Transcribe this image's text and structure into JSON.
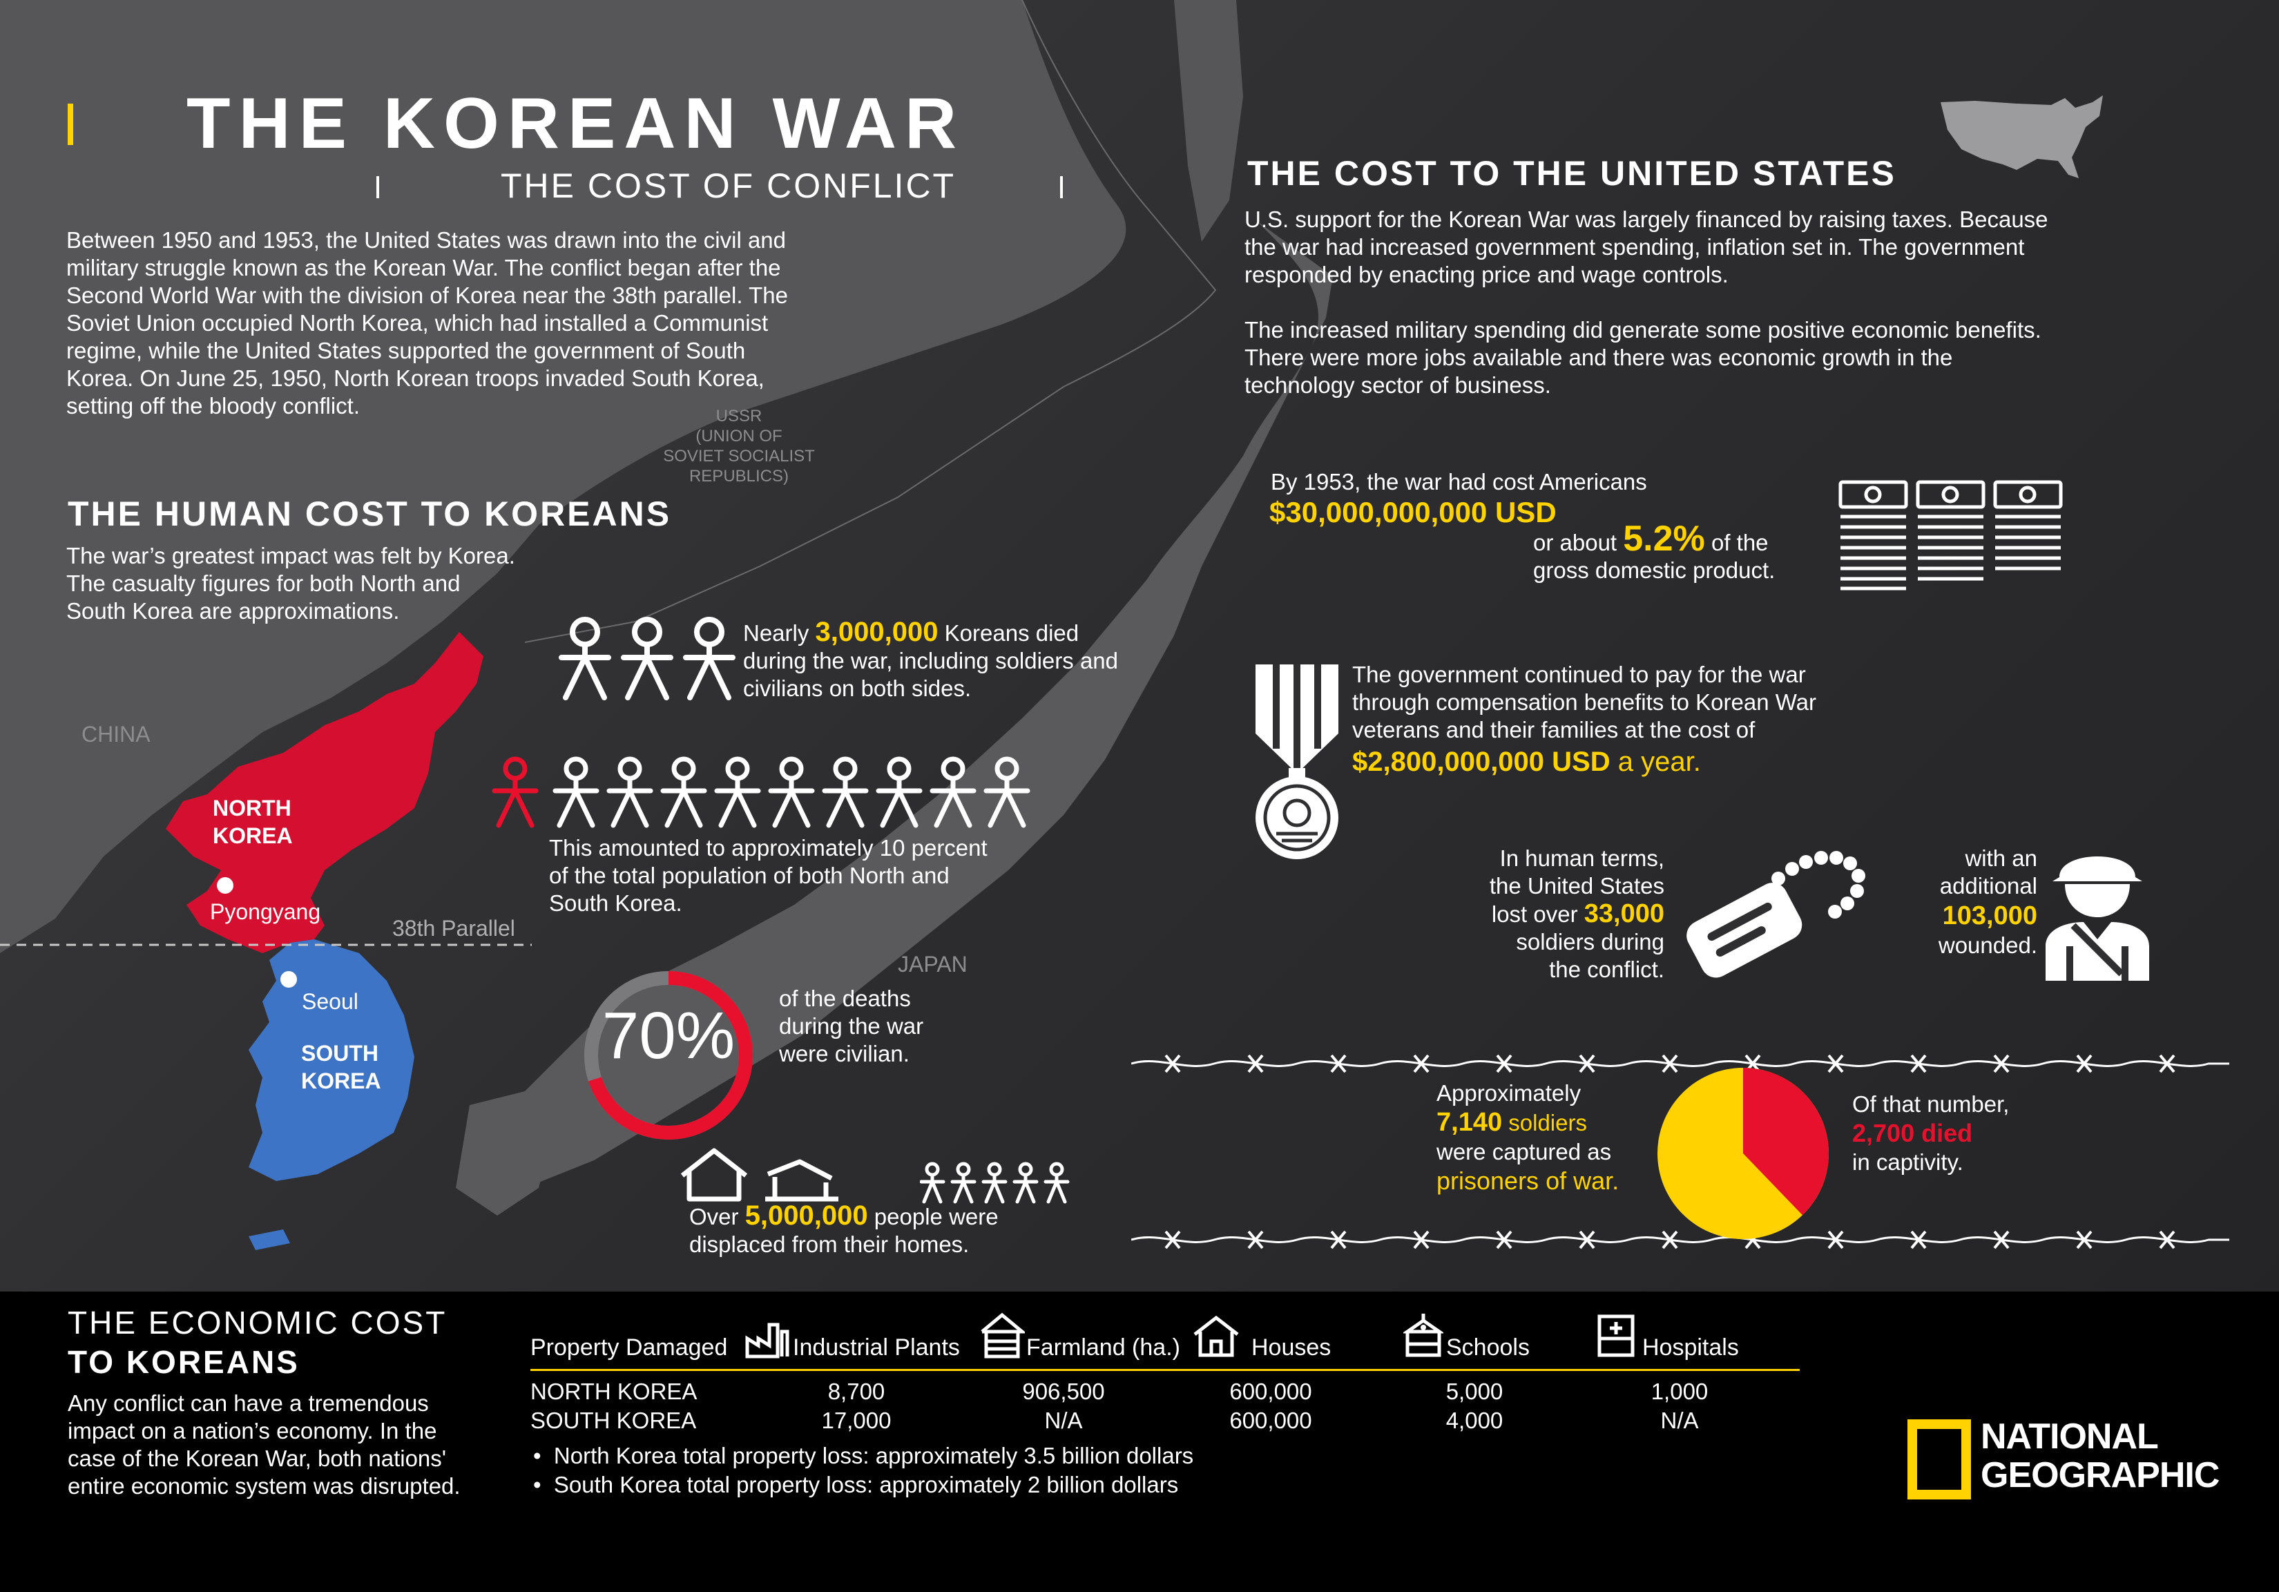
{
  "colors": {
    "accent": "#ffd200",
    "north": "#d40f2f",
    "south": "#3e74c6",
    "background": "#2f2f31",
    "footer": "#000000"
  },
  "header": {
    "title": "THE KOREAN WAR",
    "subtitle": "THE COST OF CONFLICT"
  },
  "intro": [
    "Between 1950 and 1953, the United States was drawn into the civil and",
    "military struggle known as the Korean War. The conflict began after the",
    "Second World War with the division of Korea near the 38th parallel. The",
    "Soviet Union occupied North Korea, which had installed a Communist",
    "regime, while the United States supported the government of South",
    "Korea. On June 25, 1950, North Korean troops invaded South Korea,",
    "setting off the bloody conflict."
  ],
  "map": {
    "ussr": [
      "USSR",
      "(UNION OF",
      "SOVIET SOCIALIST",
      "REPUBLICS)"
    ],
    "china": "CHINA",
    "japan": "JAPAN",
    "north_korea": [
      "NORTH",
      "KOREA"
    ],
    "south_korea": [
      "SOUTH",
      "KOREA"
    ],
    "pyongyang": "Pyongyang",
    "seoul": "Seoul",
    "parallel": "38th Parallel"
  },
  "human_cost": {
    "heading": "THE HUMAN COST TO KOREANS",
    "lines": [
      "The war’s greatest impact was felt by Korea.",
      "The casualty figures for both North and",
      "South Korea are approximations."
    ],
    "died_pre": "Nearly ",
    "died_value": "3,000,000",
    "died_post": " Koreans died",
    "died_line2": "during the war, including soldiers and",
    "died_line3": "civilians on both sides.",
    "percent_lines": [
      "This amounted to approximately 10 percent",
      "of the total population of both North and",
      "South Korea."
    ],
    "civilian_percent": "70%",
    "civilian_fraction": 0.7,
    "civilian_lines": [
      "of the deaths",
      "during the war",
      "were civilian."
    ],
    "displaced_pre": "Over ",
    "displaced_value": "5,000,000",
    "displaced_post": " people were",
    "displaced_line2": "displaced from their homes."
  },
  "us_cost": {
    "heading": "THE COST TO THE UNITED STATES",
    "para1": [
      "U.S. support for the Korean War was largely financed by raising taxes. Because",
      "the war had increased government spending, inflation set in. The government",
      "responded by enacting price and wage controls."
    ],
    "para2": [
      "The increased military spending did generate some positive economic benefits.",
      "There were more jobs available and there was economic growth in the",
      "technology sector of business."
    ],
    "cost_line1": "By 1953, the war had cost Americans",
    "cost_value": "$30,000,000,000 USD",
    "cost_pre": "or about ",
    "gdp_percent": "5.2%",
    "cost_post": " of the",
    "cost_line4": "gross domestic product.",
    "benefits_lines": [
      "The government continued to pay for the war",
      "through compensation benefits to Korean War",
      "veterans and their families at the cost of"
    ],
    "benefits_value": "$2,800,000,000 USD",
    "benefits_post": " a year.",
    "human_lines": [
      "In human terms,",
      "the United States"
    ],
    "lost_pre": "lost over ",
    "lost_value": "33,000",
    "lost_lines": [
      "soldiers during",
      "the conflict."
    ],
    "wounded_lines": [
      "with an",
      "additional"
    ],
    "wounded_value": "103,000",
    "wounded_post": "wounded.",
    "pow_line1": "Approximately",
    "pow_value": "7,140",
    "pow_soldiers": " soldiers",
    "pow_line3": "were captured as",
    "pow_line4": "prisoners of war.",
    "died_line1": "Of that number,",
    "died_value": "2,700 died",
    "died_line3": "in captivity.",
    "pow_died_fraction": 0.378
  },
  "economic": {
    "heading_line1": "THE ECONOMIC COST",
    "heading_line2": "TO KOREANS",
    "lines": [
      "Any conflict can have a tremendous",
      "impact on a nation’s economy. In the",
      "case of the Korean War, both nations'",
      "entire economic system was disrupted."
    ],
    "table": {
      "row_header": "Property Damaged",
      "columns": [
        "Industrial Plants",
        "Farmland (ha.)",
        "Houses",
        "Schools",
        "Hospitals"
      ],
      "rows": [
        {
          "label": "NORTH KOREA",
          "values": [
            "8,700",
            "906,500",
            "600,000",
            "5,000",
            "1,000"
          ]
        },
        {
          "label": "SOUTH KOREA",
          "values": [
            "17,000",
            "N/A",
            "600,000",
            "4,000",
            "N/A"
          ]
        }
      ]
    },
    "bullets": [
      "North Korea total property loss: approximately 3.5 billion dollars",
      "South Korea total property loss: approximately 2 billion dollars"
    ]
  },
  "brand": {
    "line1": "NATIONAL",
    "line2": "GEOGRAPHIC"
  }
}
